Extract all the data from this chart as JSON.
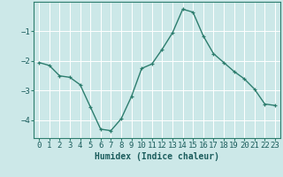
{
  "x": [
    0,
    1,
    2,
    3,
    4,
    5,
    6,
    7,
    8,
    9,
    10,
    11,
    12,
    13,
    14,
    15,
    16,
    17,
    18,
    19,
    20,
    21,
    22,
    23
  ],
  "y": [
    -2.05,
    -2.15,
    -2.5,
    -2.55,
    -2.8,
    -3.55,
    -4.3,
    -4.35,
    -3.95,
    -3.2,
    -2.25,
    -2.1,
    -1.6,
    -1.05,
    -0.25,
    -0.35,
    -1.15,
    -1.75,
    -2.05,
    -2.35,
    -2.6,
    -2.95,
    -3.45,
    -3.5
  ],
  "line_color": "#2d7d6e",
  "marker": "+",
  "marker_size": 3,
  "line_width": 1.0,
  "bg_color": "#cce8e8",
  "grid_color": "#ffffff",
  "xlabel": "Humidex (Indice chaleur)",
  "xlabel_fontsize": 7,
  "tick_fontsize": 6.5,
  "ylim": [
    -4.6,
    -0.0
  ],
  "xlim": [
    -0.5,
    23.5
  ],
  "yticks": [
    -4,
    -3,
    -2,
    -1
  ],
  "xtick_labels": [
    "0",
    "1",
    "2",
    "3",
    "4",
    "5",
    "6",
    "7",
    "8",
    "9",
    "10",
    "11",
    "12",
    "13",
    "14",
    "15",
    "16",
    "17",
    "18",
    "19",
    "20",
    "21",
    "22",
    "23"
  ]
}
